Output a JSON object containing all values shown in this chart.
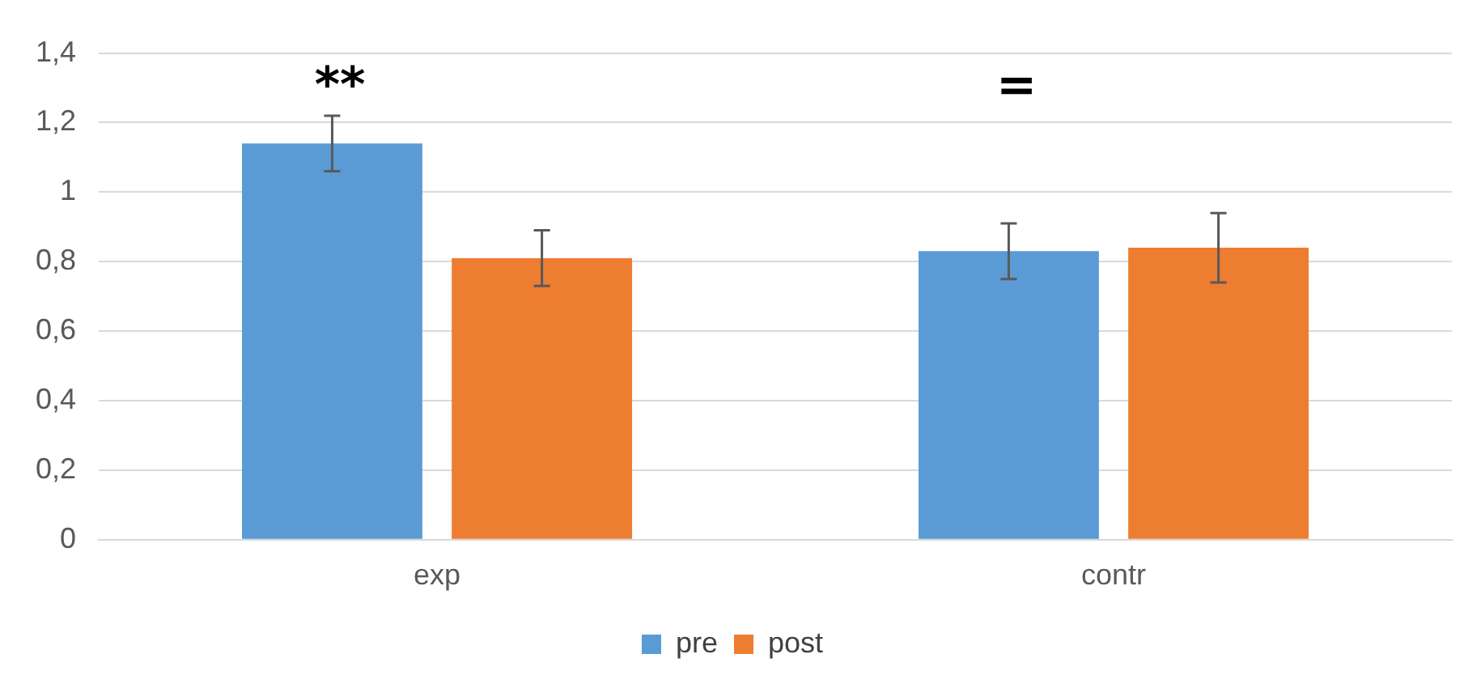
{
  "chart_data": {
    "type": "bar",
    "categories": [
      "exp",
      "contr"
    ],
    "series": [
      {
        "name": "pre",
        "color": "#5b9bd5",
        "values": [
          1.14,
          0.83
        ],
        "errors": [
          0.08,
          0.08
        ]
      },
      {
        "name": "post",
        "color": "#ed7d31",
        "values": [
          0.81,
          0.84
        ],
        "errors": [
          0.08,
          0.1
        ]
      }
    ],
    "ylim": [
      0,
      1.4
    ],
    "yticks": [
      0,
      {
        "value": 0.2,
        "label": "0,2"
      },
      {
        "value": 0.4,
        "label": "0,4"
      },
      {
        "value": 0.6,
        "label": "0,6"
      },
      {
        "value": 0.8,
        "label": "0,8"
      },
      1,
      {
        "value": 1.2,
        "label": "1,2"
      },
      {
        "value": 1.4,
        "label": "1,4"
      }
    ],
    "grid": "y",
    "legend": "bottom",
    "annotations": [
      "**",
      "="
    ]
  }
}
